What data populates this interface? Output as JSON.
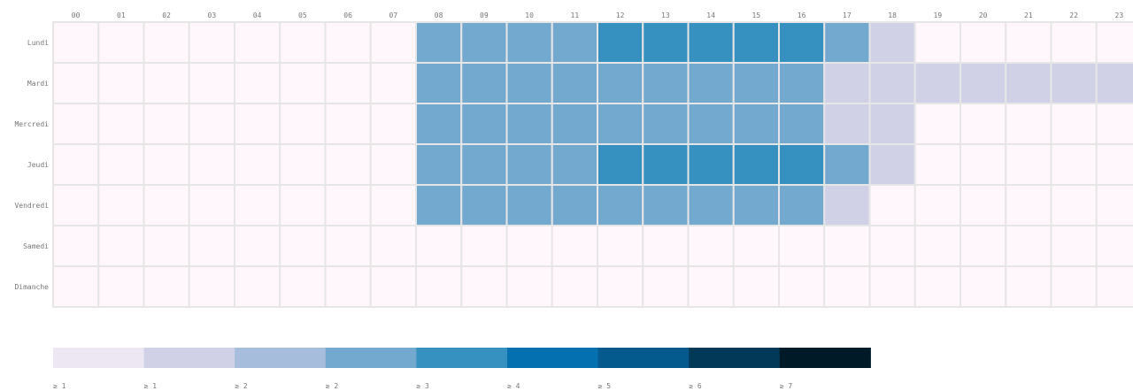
{
  "chart_data": {
    "type": "heatmap",
    "x": [
      "00",
      "01",
      "02",
      "03",
      "04",
      "05",
      "06",
      "07",
      "08",
      "09",
      "10",
      "11",
      "12",
      "13",
      "14",
      "15",
      "16",
      "17",
      "18",
      "19",
      "20",
      "21",
      "22",
      "23"
    ],
    "y": [
      "Lundi",
      "Mardi",
      "Mercredi",
      "Jeudi",
      "Vendredi",
      "Samedi",
      "Dimanche"
    ],
    "values": [
      [
        0,
        0,
        0,
        0,
        0,
        0,
        0,
        0,
        2,
        2,
        2,
        2,
        3,
        3,
        3,
        3,
        3,
        2,
        1,
        0,
        0,
        0,
        0,
        0
      ],
      [
        0,
        0,
        0,
        0,
        0,
        0,
        0,
        0,
        2,
        2,
        2,
        2,
        2,
        2,
        2,
        2,
        2,
        1,
        1,
        1,
        1,
        1,
        1,
        1
      ],
      [
        0,
        0,
        0,
        0,
        0,
        0,
        0,
        0,
        2,
        2,
        2,
        2,
        2,
        2,
        2,
        2,
        2,
        1,
        1,
        0,
        0,
        0,
        0,
        0
      ],
      [
        0,
        0,
        0,
        0,
        0,
        0,
        0,
        0,
        2,
        2,
        2,
        2,
        3,
        3,
        3,
        3,
        3,
        2,
        1,
        0,
        0,
        0,
        0,
        0
      ],
      [
        0,
        0,
        0,
        0,
        0,
        0,
        0,
        0,
        2,
        2,
        2,
        2,
        2,
        2,
        2,
        2,
        2,
        1,
        0,
        0,
        0,
        0,
        0,
        0
      ],
      [
        0,
        0,
        0,
        0,
        0,
        0,
        0,
        0,
        0,
        0,
        0,
        0,
        0,
        0,
        0,
        0,
        0,
        0,
        0,
        0,
        0,
        0,
        0,
        0
      ],
      [
        0,
        0,
        0,
        0,
        0,
        0,
        0,
        0,
        0,
        0,
        0,
        0,
        0,
        0,
        0,
        0,
        0,
        0,
        0,
        0,
        0,
        0,
        0,
        0
      ]
    ],
    "value_colors": {
      "0": "#fff7fb",
      "1": "#d0d1e6",
      "2": "#74a9cf",
      "3": "#3690c0"
    },
    "grid_color": "#e6e6e6",
    "legend": {
      "placement": "bottom",
      "colors": [
        "#ece7f2",
        "#d0d1e6",
        "#a6bddb",
        "#74a9cf",
        "#3690c0",
        "#0570b0",
        "#045a8d",
        "#023858",
        "#001a28"
      ],
      "labels": [
        "≥ 1",
        "≥ 1",
        "≥ 2",
        "≥ 2",
        "≥ 3",
        "≥ 4",
        "≥ 5",
        "≥ 6",
        "≥ 7"
      ]
    }
  }
}
